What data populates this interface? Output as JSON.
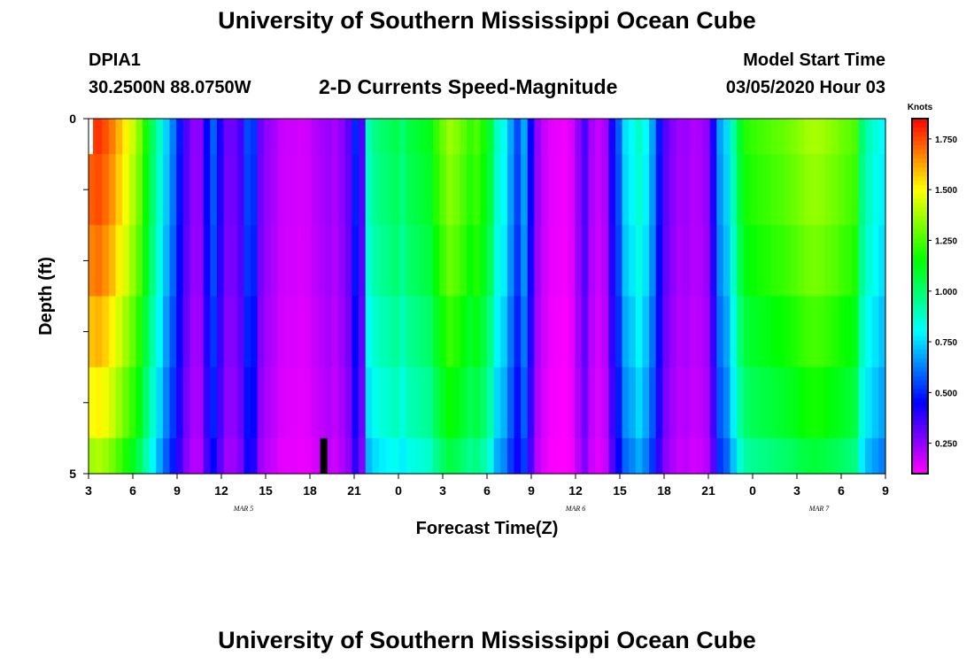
{
  "header": {
    "title": "University of Southern Mississippi Ocean Cube",
    "station_id": "DPIA1",
    "station_coords": "30.2500N 88.0750W",
    "subtitle": "2-D Currents Speed-Magnitude",
    "model_label": "Model Start Time",
    "model_time": "03/05/2020 Hour 03"
  },
  "footer": {
    "title": "University of Southern Mississippi Ocean Cube"
  },
  "chart_data": {
    "type": "heatmap",
    "title": "2-D Currents Speed-Magnitude",
    "xlabel": "Forecast Time(Z)",
    "ylabel": "Depth (ft)",
    "ylim": [
      0,
      5
    ],
    "y_tick_labels": [
      "0",
      "5"
    ],
    "x_tick_labels": [
      "3",
      "6",
      "9",
      "12",
      "15",
      "18",
      "21",
      "0",
      "3",
      "6",
      "9",
      "12",
      "15",
      "18",
      "21",
      "0",
      "3",
      "6",
      "9"
    ],
    "x_hours_from_start": [
      0,
      3,
      6,
      9,
      12,
      15,
      18,
      21,
      24,
      27,
      30,
      33,
      36,
      39,
      42,
      45,
      48,
      51,
      54
    ],
    "date_labels": [
      {
        "text": "MAR 5",
        "hour": 10.5
      },
      {
        "text": "MAR 6",
        "hour": 33
      },
      {
        "text": "MAR 7",
        "hour": 49.5
      }
    ],
    "colorbar": {
      "label": "Knots",
      "min": 0.1,
      "max": 1.85,
      "ticks": [
        "1.750",
        "1.500",
        "1.250",
        "1.000",
        "0.750",
        "0.500",
        "0.250"
      ],
      "tick_values": [
        1.75,
        1.5,
        1.25,
        1.0,
        0.75,
        0.5,
        0.25
      ]
    },
    "depth_bands": [
      "0-0.5",
      "0.5-1.5",
      "1.5-2.5",
      "2.5-3.5",
      "3.5-4.5",
      "4.5-5"
    ],
    "surface_profile": [
      1.76,
      1.78,
      1.74,
      1.68,
      1.6,
      1.52,
      1.43,
      1.33,
      1.18,
      1.02,
      0.88,
      0.74,
      0.62,
      0.48,
      0.34,
      0.26,
      0.26,
      0.45,
      0.58,
      0.42,
      0.3,
      0.3,
      0.36,
      0.55,
      0.52,
      0.3,
      0.25,
      0.22,
      0.18,
      0.17,
      0.17,
      0.16,
      0.17,
      0.2,
      0.22,
      0.24,
      0.22,
      0.26,
      0.32,
      0.5,
      0.35,
      0.9,
      0.97,
      1.0,
      1.02,
      1.05,
      1.0,
      1.06,
      1.08,
      1.1,
      1.12,
      1.22,
      1.3,
      1.36,
      1.33,
      1.28,
      1.22,
      1.25,
      1.18,
      1.08,
      0.88,
      0.82,
      0.68,
      0.55,
      0.68,
      0.45,
      0.25,
      0.18,
      0.14,
      0.13,
      0.12,
      0.15,
      0.25,
      0.35,
      0.22,
      0.18,
      0.22,
      0.42,
      0.57,
      0.76,
      0.81,
      0.88,
      0.8,
      0.67,
      0.48,
      0.33,
      0.27,
      0.23,
      0.24,
      0.21,
      0.22,
      0.25,
      0.42,
      0.67,
      0.75,
      0.92,
      1.1,
      1.2,
      1.22,
      1.24,
      1.25,
      1.27,
      1.28,
      1.3,
      1.32,
      1.35,
      1.37,
      1.38,
      1.37,
      1.35,
      1.33,
      1.3,
      1.28,
      1.25,
      1.0,
      0.9,
      0.85,
      0.8
    ],
    "depth_factors": [
      1.0,
      0.98,
      0.95,
      0.9,
      0.85,
      0.78
    ],
    "missing_marker_hour": 15.7
  }
}
